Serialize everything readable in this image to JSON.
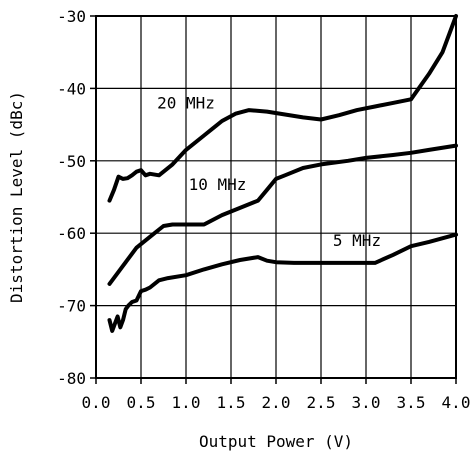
{
  "chart_data": {
    "type": "line",
    "xlabel": "Output Power (V)",
    "ylabel": "Distortion Level (dBc)",
    "xlim": [
      0.0,
      4.0
    ],
    "ylim": [
      -80,
      -30
    ],
    "xticks": [
      0.0,
      0.5,
      1.0,
      1.5,
      2.0,
      2.5,
      3.0,
      3.5,
      4.0
    ],
    "xtick_labels": [
      "0.0",
      "0.5",
      "1.0",
      "1.5",
      "2.0",
      "2.5",
      "3.0",
      "3.5",
      "4.0"
    ],
    "yticks": [
      -30,
      -40,
      -50,
      -60,
      -70,
      -80
    ],
    "ytick_labels": [
      "-30",
      "-40",
      "-50",
      "-60",
      "-70",
      "-80"
    ],
    "grid": true,
    "series": [
      {
        "name": "20 MHz",
        "x": [
          0.15,
          0.2,
          0.25,
          0.3,
          0.35,
          0.4,
          0.45,
          0.5,
          0.55,
          0.6,
          0.7,
          0.75,
          0.85,
          1.0,
          1.2,
          1.4,
          1.55,
          1.7,
          1.9,
          2.1,
          2.3,
          2.5,
          2.7,
          2.9,
          3.1,
          3.3,
          3.5,
          3.7,
          3.85,
          4.0
        ],
        "y": [
          -55.5,
          -54,
          -52.2,
          -52.5,
          -52.4,
          -52,
          -51.5,
          -51.3,
          -52,
          -51.8,
          -52,
          -51.5,
          -50.5,
          -48.5,
          -46.5,
          -44.5,
          -43.5,
          -43,
          -43.2,
          -43.6,
          -44,
          -44.3,
          -43.7,
          -43,
          -42.5,
          -42,
          -41.5,
          -38,
          -35,
          -30
        ]
      },
      {
        "name": "10 MHz",
        "x": [
          0.15,
          0.3,
          0.45,
          0.55,
          0.65,
          0.75,
          0.85,
          1.0,
          1.2,
          1.4,
          1.6,
          1.8,
          1.9,
          2.0,
          2.1,
          2.3,
          2.5,
          2.8,
          3.0,
          3.3,
          3.5,
          3.7,
          4.0
        ],
        "y": [
          -67,
          -64.5,
          -62,
          -61,
          -60,
          -59,
          -58.8,
          -58.8,
          -58.8,
          -57.5,
          -56.5,
          -55.5,
          -54,
          -52.5,
          -52,
          -51,
          -50.5,
          -50,
          -49.6,
          -49.2,
          -48.9,
          -48.5,
          -47.9
        ]
      },
      {
        "name": "5 MHz",
        "x": [
          0.15,
          0.18,
          0.21,
          0.24,
          0.27,
          0.3,
          0.33,
          0.36,
          0.4,
          0.45,
          0.5,
          0.55,
          0.6,
          0.7,
          0.8,
          1.0,
          1.2,
          1.4,
          1.6,
          1.8,
          1.9,
          2.0,
          2.2,
          2.5,
          2.8,
          3.1,
          3.3,
          3.5,
          3.7,
          4.0
        ],
        "y": [
          -72,
          -73.5,
          -72.5,
          -71.5,
          -73,
          -72,
          -70.5,
          -70,
          -69.5,
          -69.3,
          -68,
          -67.8,
          -67.5,
          -66.5,
          -66.2,
          -65.8,
          -65,
          -64.3,
          -63.7,
          -63.3,
          -63.8,
          -64,
          -64.1,
          -64.1,
          -64.1,
          -64.1,
          -63,
          -61.8,
          -61.2,
          -60.2
        ]
      }
    ],
    "annotations": [
      {
        "text": "20 MHz",
        "x": 1.0,
        "y": -42.8
      },
      {
        "text": "10 MHz",
        "x": 1.35,
        "y": -54.0
      },
      {
        "text": "5 MHz",
        "x": 2.9,
        "y": -61.8
      }
    ]
  }
}
